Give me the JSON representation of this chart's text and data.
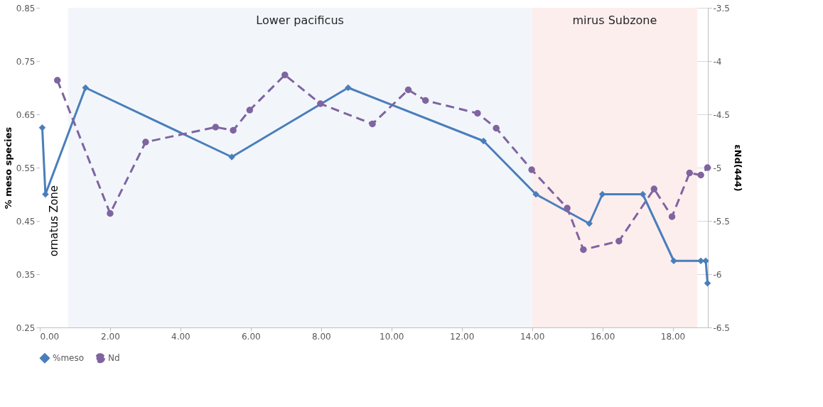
{
  "chart_data": {
    "type": "line",
    "xlabel": null,
    "ylabel": "% meso species",
    "y2label": "εNd(444)",
    "xlim": [
      0,
      19
    ],
    "xticks": [
      {
        "value": 0,
        "label": "0.00"
      },
      {
        "value": 2,
        "label": "2.00"
      },
      {
        "value": 4,
        "label": "4.00"
      },
      {
        "value": 6,
        "label": "6.00"
      },
      {
        "value": 8,
        "label": "8.00"
      },
      {
        "value": 10,
        "label": "10.00"
      },
      {
        "value": 12,
        "label": "12.00"
      },
      {
        "value": 14,
        "label": "14.00"
      },
      {
        "value": 16,
        "label": "16.00"
      },
      {
        "value": 18,
        "label": "18.00"
      }
    ],
    "ylim": [
      0.25,
      0.85
    ],
    "yticks": [
      0.25,
      0.35,
      0.45,
      0.55,
      0.65,
      0.75,
      0.85
    ],
    "y2lim": [
      -6.5,
      -3.5
    ],
    "y2ticks": [
      -6.5,
      -6,
      -5.5,
      -5,
      -4.5,
      -4,
      -3.5
    ],
    "grid": true,
    "legend": "bottom",
    "series": [
      {
        "name": "%meso",
        "color": "#4a7ebb",
        "marker": "diamond",
        "line_style": "solid",
        "x": [
          0.07,
          0.16,
          1.3,
          5.46,
          8.77,
          12.62,
          14.11,
          15.63,
          16.0,
          17.15,
          18.03,
          18.8,
          18.94,
          18.99
        ],
        "values": [
          0.625,
          0.5,
          0.7,
          0.57,
          0.7,
          0.6,
          0.5,
          0.445,
          0.5,
          0.5,
          0.375,
          0.375,
          0.375,
          0.333
        ]
      },
      {
        "name": "Nd",
        "color": "#7f64a0",
        "marker": "circle",
        "line_style": "dashed",
        "axis": "y2",
        "x": [
          0.5,
          2.0,
          3.01,
          5.0,
          5.5,
          5.97,
          6.97,
          7.98,
          9.46,
          10.48,
          10.97,
          12.45,
          12.98,
          13.99,
          15.0,
          15.46,
          16.47,
          17.47,
          17.98,
          18.48,
          18.8,
          18.99
        ],
        "values": [
          -4.18,
          -5.43,
          -4.76,
          -4.62,
          -4.65,
          -4.46,
          -4.13,
          -4.4,
          -4.59,
          -4.27,
          -4.37,
          -4.49,
          -4.63,
          -5.02,
          -5.38,
          -5.77,
          -5.69,
          -5.2,
          -5.46,
          -5.05,
          -5.07,
          -5.0
        ]
      }
    ],
    "bands": [
      {
        "axis": "x",
        "from": 0,
        "to": 0.8,
        "label": "ornatus Zone",
        "color": "#ffffff"
      },
      {
        "axis": "x",
        "from": 0.8,
        "to": 14,
        "label": "Lower pacificus",
        "color": "#f2f6fb"
      },
      {
        "axis": "x",
        "from": 14,
        "to": 18.7,
        "label": "mirus Subzone",
        "color": "#fdeeee"
      }
    ]
  }
}
